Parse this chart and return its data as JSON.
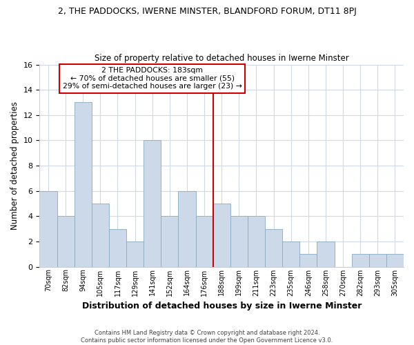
{
  "title": "2, THE PADDOCKS, IWERNE MINSTER, BLANDFORD FORUM, DT11 8PJ",
  "subtitle": "Size of property relative to detached houses in Iwerne Minster",
  "xlabel": "Distribution of detached houses by size in Iwerne Minster",
  "ylabel": "Number of detached properties",
  "bin_labels": [
    "70sqm",
    "82sqm",
    "94sqm",
    "105sqm",
    "117sqm",
    "129sqm",
    "141sqm",
    "152sqm",
    "164sqm",
    "176sqm",
    "188sqm",
    "199sqm",
    "211sqm",
    "223sqm",
    "235sqm",
    "246sqm",
    "258sqm",
    "270sqm",
    "282sqm",
    "293sqm",
    "305sqm"
  ],
  "bar_heights": [
    6,
    4,
    13,
    5,
    3,
    2,
    10,
    4,
    6,
    4,
    5,
    4,
    4,
    3,
    2,
    1,
    2,
    0,
    1,
    1,
    1
  ],
  "bar_color": "#ccd9e8",
  "bar_edge_color": "#8aaabf",
  "highlight_line_color": "#cc0000",
  "annotation_text": "2 THE PADDOCKS: 183sqm\n← 70% of detached houses are smaller (55)\n29% of semi-detached houses are larger (23) →",
  "annotation_box_color": "#ffffff",
  "annotation_box_edge_color": "#cc0000",
  "ylim": [
    0,
    16
  ],
  "yticks": [
    0,
    2,
    4,
    6,
    8,
    10,
    12,
    14,
    16
  ],
  "footer_text": "Contains HM Land Registry data © Crown copyright and database right 2024.\nContains public sector information licensed under the Open Government Licence v3.0.",
  "grid_color": "#d0d8e4",
  "background_color": "#ffffff"
}
